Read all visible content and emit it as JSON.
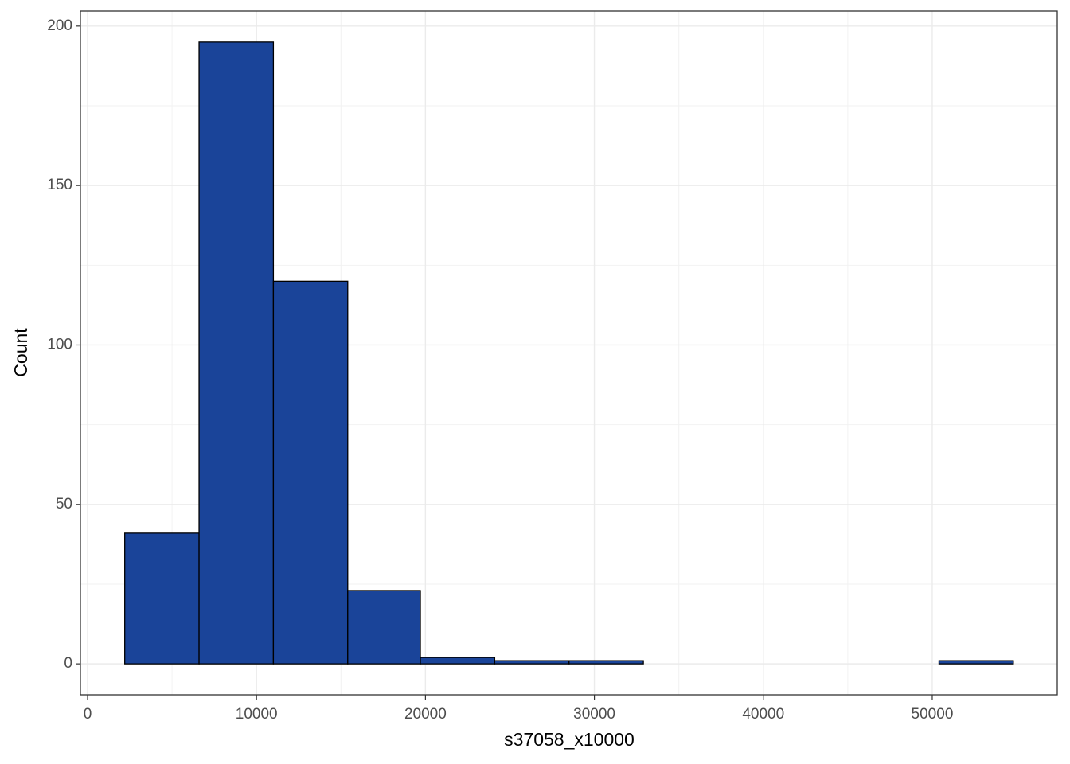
{
  "chart_data": {
    "type": "histogram",
    "x_label": "s37058_x10000",
    "y_label": "Count",
    "bins": [
      2200,
      6600,
      11000,
      15400,
      19700,
      24100,
      28500,
      32900,
      37300,
      41700,
      46000,
      50400,
      54800
    ],
    "values": [
      41,
      195,
      120,
      23,
      2,
      1,
      1,
      0,
      0,
      0,
      0,
      1
    ],
    "color": "#1a4499",
    "xlim": [
      -424,
      57400
    ],
    "ylim": [
      -9.7,
      204.7
    ],
    "xticks": [
      0,
      10000,
      20000,
      30000,
      40000,
      50000
    ],
    "yticks": [
      0,
      50,
      100,
      150,
      200
    ],
    "grid": true
  }
}
